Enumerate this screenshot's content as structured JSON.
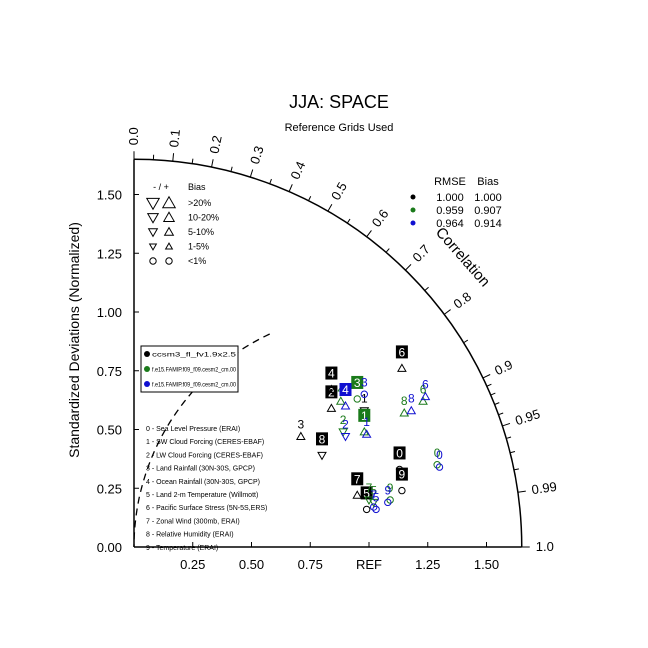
{
  "chart_data": {
    "type": "scatter",
    "title": "JJA: SPACE",
    "subtitle": "Reference Grids Used",
    "ylabel": "Standardized Deviations (Normalized)",
    "arc_label": "Correlation",
    "ref_label": "REF",
    "radial_max": 1.65,
    "x_ticks": [
      "0.25",
      "0.50",
      "0.75",
      "REF",
      "1.25",
      "1.50"
    ],
    "x_tick_values": [
      0.25,
      0.5,
      0.75,
      1.0,
      1.25,
      1.5
    ],
    "y_ticks": [
      "0.00",
      "0.25",
      "0.50",
      "0.75",
      "1.00",
      "1.25",
      "1.50"
    ],
    "y_tick_values": [
      0,
      0.25,
      0.5,
      0.75,
      1.0,
      1.25,
      1.5
    ],
    "corr_label_values": [
      0.0,
      0.1,
      0.2,
      0.3,
      0.4,
      0.5,
      0.6,
      0.7,
      0.8,
      0.9,
      0.95,
      0.99,
      1.0
    ],
    "corr_labels": [
      "0.0",
      "0.1",
      "0.2",
      "0.3",
      "0.4",
      "0.5",
      "0.6",
      "0.7",
      "0.8",
      "0.9",
      "0.95",
      "0.99",
      "1.0"
    ],
    "corr_minor_ticks": [
      0.05,
      0.15,
      0.25,
      0.35,
      0.45,
      0.55,
      0.65,
      0.75,
      0.85,
      0.91,
      0.92,
      0.93,
      0.94,
      0.96,
      0.97,
      0.98
    ],
    "ref_arc_radius": 1.0,
    "series": [
      {
        "name": "ccsm3_fl_fv1.9x2.5",
        "color": "#000000",
        "points": [
          {
            "id": "0",
            "x": 1.13,
            "y": 0.33,
            "marker": "circle"
          },
          {
            "id": "1",
            "x": 0.98,
            "y": 0.58,
            "marker": "down-triangle"
          },
          {
            "id": "2",
            "x": 0.84,
            "y": 0.59,
            "marker": "up-triangle"
          },
          {
            "id": "3",
            "x": 0.71,
            "y": 0.47,
            "marker": "up-triangle"
          },
          {
            "id": "4",
            "x": 0.84,
            "y": 0.67,
            "marker": "up-triangle"
          },
          {
            "id": "5",
            "x": 0.99,
            "y": 0.16,
            "marker": "circle"
          },
          {
            "id": "6",
            "x": 1.14,
            "y": 0.76,
            "marker": "up-triangle"
          },
          {
            "id": "7",
            "x": 0.95,
            "y": 0.22,
            "marker": "up-triangle"
          },
          {
            "id": "8",
            "x": 0.8,
            "y": 0.39,
            "marker": "down-triangle"
          },
          {
            "id": "9",
            "x": 1.14,
            "y": 0.24,
            "marker": "circle"
          }
        ]
      },
      {
        "name": "f.e15.FAMIP.f09_f09.cesm2_cm.00",
        "color": "#1a7a1a",
        "points": [
          {
            "id": "0",
            "x": 1.29,
            "y": 0.35,
            "marker": "circle"
          },
          {
            "id": "1",
            "x": 0.98,
            "y": 0.49,
            "marker": "up-triangle"
          },
          {
            "id": "2",
            "x": 0.89,
            "y": 0.49,
            "marker": "down-triangle"
          },
          {
            "id": "3",
            "x": 0.95,
            "y": 0.63,
            "marker": "circle"
          },
          {
            "id": "4",
            "x": 0.88,
            "y": 0.62,
            "marker": "up-triangle"
          },
          {
            "id": "5",
            "x": 1.02,
            "y": 0.19,
            "marker": "down-triangle"
          },
          {
            "id": "6",
            "x": 1.23,
            "y": 0.62,
            "marker": "up-triangle"
          },
          {
            "id": "7",
            "x": 1.0,
            "y": 0.2,
            "marker": "down-triangle"
          },
          {
            "id": "8",
            "x": 1.15,
            "y": 0.57,
            "marker": "up-triangle"
          },
          {
            "id": "9",
            "x": 1.09,
            "y": 0.2,
            "marker": "circle"
          }
        ]
      },
      {
        "name": "f.e15.FAMIP.f09_f09.cesm2_cm.00",
        "color": "#1010d0",
        "points": [
          {
            "id": "0",
            "x": 1.3,
            "y": 0.34,
            "marker": "circle"
          },
          {
            "id": "1",
            "x": 0.99,
            "y": 0.48,
            "marker": "up-triangle"
          },
          {
            "id": "2",
            "x": 0.9,
            "y": 0.47,
            "marker": "down-triangle"
          },
          {
            "id": "3",
            "x": 0.98,
            "y": 0.65,
            "marker": "circle"
          },
          {
            "id": "4",
            "x": 0.9,
            "y": 0.6,
            "marker": "up-triangle"
          },
          {
            "id": "5",
            "x": 1.03,
            "y": 0.16,
            "marker": "circle"
          },
          {
            "id": "6",
            "x": 1.24,
            "y": 0.64,
            "marker": "up-triangle"
          },
          {
            "id": "7",
            "x": 1.02,
            "y": 0.17,
            "marker": "circle"
          },
          {
            "id": "8",
            "x": 1.18,
            "y": 0.58,
            "marker": "up-triangle"
          },
          {
            "id": "9",
            "x": 1.08,
            "y": 0.19,
            "marker": "circle"
          }
        ]
      }
    ],
    "highlighted_labels": [
      {
        "series": 0,
        "id": "0"
      },
      {
        "series": 0,
        "id": "2"
      },
      {
        "series": 0,
        "id": "4"
      },
      {
        "series": 0,
        "id": "5"
      },
      {
        "series": 0,
        "id": "6"
      },
      {
        "series": 0,
        "id": "7"
      },
      {
        "series": 0,
        "id": "8"
      },
      {
        "series": 0,
        "id": "9"
      },
      {
        "series": 1,
        "id": "1"
      },
      {
        "series": 1,
        "id": "3"
      },
      {
        "series": 2,
        "id": "4"
      }
    ],
    "stats_table": {
      "headers": [
        "RMSE",
        "Bias"
      ],
      "rows": [
        {
          "color": "#000000",
          "rmse": "1.000",
          "bias": "1.000"
        },
        {
          "color": "#1a7a1a",
          "rmse": "0.959",
          "bias": "0.907"
        },
        {
          "color": "#1010d0",
          "rmse": "0.964",
          "bias": "0.914"
        }
      ]
    },
    "bias_legend": {
      "header_sign": "- / +",
      "header_label": "Bias",
      "items": [
        {
          "label": ">20%",
          "size": 5
        },
        {
          "label": "10-20%",
          "size": 4.2
        },
        {
          "label": "5-10%",
          "size": 3.5
        },
        {
          "label": "1-5%",
          "size": 2.7
        },
        {
          "label": "<1%",
          "size": 3.2,
          "circle": true
        }
      ]
    },
    "variables": [
      "0 - Sea Level Pressure (ERAI)",
      "1 - SW Cloud Forcing (CERES-EBAF)",
      "2 - LW Cloud Forcing (CERES-EBAF)",
      "3 - Land Rainfall (30N-30S, GPCP)",
      "4 - Ocean Rainfall (30N-30S, GPCP)",
      "5 - Land 2-m Temperature (Willmott)",
      "6 - Pacific Surface Stress (5N-5S,ERS)",
      "7 - Zonal Wind (300mb, ERAI)",
      "8 - Relative Humidity (ERAI)",
      "9 - Temperature (ERAI)"
    ]
  }
}
